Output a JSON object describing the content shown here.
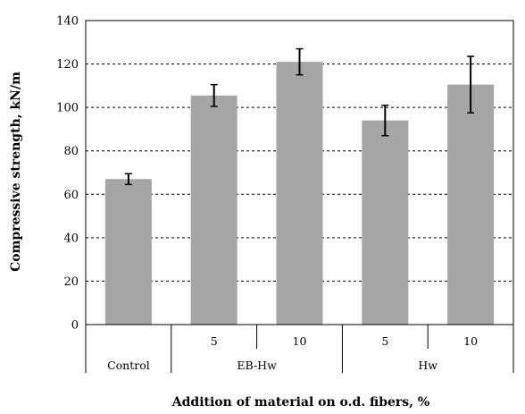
{
  "chart_data": {
    "type": "bar",
    "xlabel": "Addition of material on o.d. fibers, %",
    "ylabel": "Compressive strength, kN/m",
    "ylim": [
      0,
      140
    ],
    "yticks": [
      "0",
      "20",
      "40",
      "60",
      "80",
      "100",
      "120",
      "140"
    ],
    "grid": "horizontal dashed",
    "bar_color": "#a6a6a6",
    "categories": [
      {
        "group": "Control",
        "level": ""
      },
      {
        "group": "EB-Hw",
        "level": "5"
      },
      {
        "group": "EB-Hw",
        "level": "10"
      },
      {
        "group": "Hw",
        "level": "5"
      },
      {
        "group": "Hw",
        "level": "10"
      }
    ],
    "groups": [
      "Control",
      "EB-Hw",
      "Hw"
    ],
    "levels": [
      "5",
      "10",
      "5",
      "10"
    ],
    "values": [
      67,
      105.5,
      121,
      94,
      110.5
    ],
    "errors": [
      2.5,
      5,
      6,
      7,
      13
    ]
  }
}
